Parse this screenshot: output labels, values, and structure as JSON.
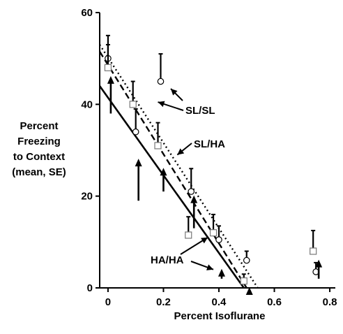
{
  "chart_data": {
    "type": "scatter",
    "ylabel_lines": [
      "Percent",
      "Freezing",
      "to Context",
      "(mean, SE)"
    ],
    "xlabel": "Percent Isoflurane",
    "xlim": [
      -0.03,
      0.82
    ],
    "ylim": [
      0,
      60
    ],
    "xticks": [
      0,
      0.2,
      0.4,
      0.6,
      0.8
    ],
    "xtick_labels": [
      "0",
      "0.2",
      "0.4",
      "0.6",
      "0.8"
    ],
    "yticks": [
      0,
      20,
      40,
      60
    ],
    "ytick_labels": [
      "0",
      "20",
      "40",
      "60"
    ],
    "grid": false,
    "series": [
      {
        "name": "SL/SL",
        "marker": "circle",
        "line_style": "dotted",
        "fit": [
          [
            -0.03,
            53
          ],
          [
            0.54,
            0
          ]
        ],
        "points": [
          {
            "x": 0.0,
            "y": 50,
            "err": 5
          },
          {
            "x": 0.1,
            "y": 34,
            "err": 5
          },
          {
            "x": 0.19,
            "y": 45,
            "err": 6
          },
          {
            "x": 0.3,
            "y": 21,
            "err": 5
          },
          {
            "x": 0.4,
            "y": 10.5,
            "err": 3
          },
          {
            "x": 0.5,
            "y": 6,
            "err": 2
          },
          {
            "x": 0.75,
            "y": 3.5,
            "err": 2
          }
        ]
      },
      {
        "name": "SL/HA",
        "marker": "square",
        "line_style": "dashed",
        "fit": [
          [
            -0.03,
            51.5
          ],
          [
            0.5,
            0
          ]
        ],
        "points": [
          {
            "x": 0.0,
            "y": 48,
            "err": 5
          },
          {
            "x": 0.09,
            "y": 40,
            "err": 5
          },
          {
            "x": 0.18,
            "y": 31,
            "err": 5
          },
          {
            "x": 0.29,
            "y": 11.5,
            "err": 4
          },
          {
            "x": 0.38,
            "y": 12,
            "err": 4
          },
          {
            "x": 0.49,
            "y": 1.5,
            "err": 1.5
          },
          {
            "x": 0.74,
            "y": 8,
            "err": 4.5
          }
        ]
      },
      {
        "name": "HA/HA",
        "marker": "arrow-up",
        "line_style": "solid",
        "fit": [
          [
            -0.03,
            44
          ],
          [
            0.49,
            0
          ]
        ],
        "points": [
          {
            "x": 0.01,
            "y": 46,
            "err": 8
          },
          {
            "x": 0.11,
            "y": 28,
            "err": 9
          },
          {
            "x": 0.2,
            "y": 26,
            "err": 5
          },
          {
            "x": 0.31,
            "y": 20,
            "err": 7
          },
          {
            "x": 0.41,
            "y": 4,
            "err": 2
          },
          {
            "x": 0.51,
            "y": 0,
            "err": 1.5
          },
          {
            "x": 0.76,
            "y": 6,
            "err": 4
          }
        ]
      }
    ],
    "annotations": [
      {
        "text": "SL/SL",
        "arrow_to": [
          0.18,
          40.5
        ]
      },
      {
        "text": "SL/HA",
        "arrow_to": [
          0.25,
          29
        ]
      },
      {
        "text": "HA/HA",
        "arrow_to": [
          0.36,
          11
        ],
        "arrow_to_2": [
          0.38,
          4
        ]
      }
    ]
  }
}
